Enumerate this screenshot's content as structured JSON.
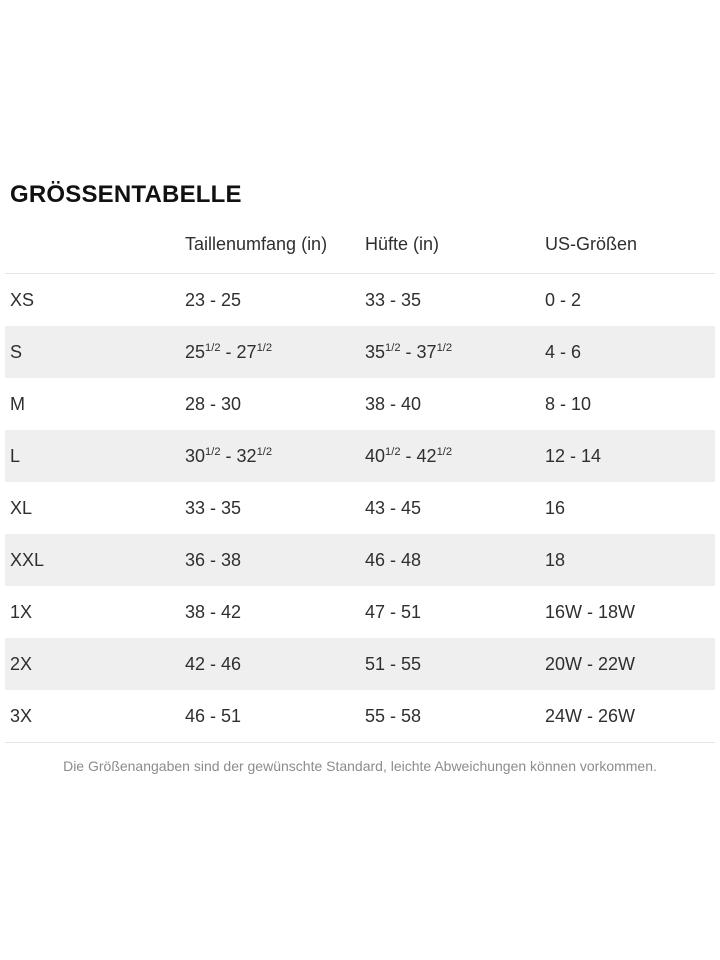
{
  "page": {
    "title": "GRÖSSENTABELLE",
    "footnote": "Die Größenangaben sind der gewünschte Standard, leichte Abweichungen können vorkommen."
  },
  "size_chart": {
    "columns": [
      "",
      "Taillenumfang (in)",
      "Hüfte (in)",
      "US-Größen"
    ],
    "rows": [
      {
        "size": "XS",
        "waist": "23 - 25",
        "hips": "33 - 35",
        "us": "0 - 2"
      },
      {
        "size": "S",
        "waist": "25{1/2} - 27{1/2}",
        "hips": "35{1/2} - 37{1/2}",
        "us": "4 - 6"
      },
      {
        "size": "M",
        "waist": "28 - 30",
        "hips": "38 - 40",
        "us": "8 - 10"
      },
      {
        "size": "L",
        "waist": "30{1/2} - 32{1/2}",
        "hips": "40{1/2} - 42{1/2}",
        "us": "12 - 14"
      },
      {
        "size": "XL",
        "waist": "33 - 35",
        "hips": "43 - 45",
        "us": "16"
      },
      {
        "size": "XXL",
        "waist": "36 - 38",
        "hips": "46 - 48",
        "us": "18"
      },
      {
        "size": "1X",
        "waist": "38 - 42",
        "hips": "47 - 51",
        "us": "16W - 18W"
      },
      {
        "size": "2X",
        "waist": "42 - 46",
        "hips": "51 - 55",
        "us": "20W - 22W"
      },
      {
        "size": "3X",
        "waist": "46 - 51",
        "hips": "55 - 58",
        "us": "24W - 26W"
      }
    ]
  },
  "colors": {
    "stripe_background": "#efefef",
    "divider": "#e3e3e3",
    "text": "#2f2f2f",
    "title_text": "#111111",
    "footnote_text": "#8c8c8c"
  }
}
